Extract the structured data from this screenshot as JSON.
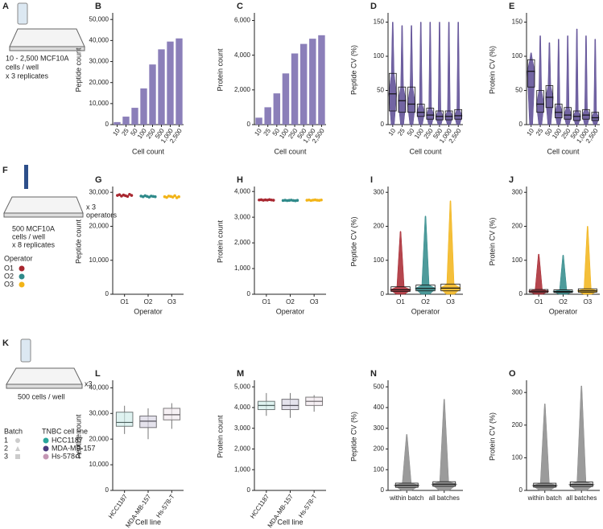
{
  "schematics": [
    {
      "panel": "A",
      "text": [
        "10 - 2,500 MCF10A",
        "cells / well",
        "x 3 replicates"
      ]
    },
    {
      "panel": "F",
      "text": [
        "500 MCF10A",
        "cells / well",
        "x 8 replicates"
      ],
      "side": [
        "x 3",
        "operators"
      ],
      "legend_title": "Operator",
      "legend": [
        {
          "name": "O1",
          "color": "#a8262f"
        },
        {
          "name": "O2",
          "color": "#2f8a8a"
        },
        {
          "name": "O3",
          "color": "#f2b418"
        }
      ]
    },
    {
      "panel": "K",
      "text": [
        "500 cells / well"
      ],
      "side": [
        "x3"
      ],
      "batch_title": "Batch",
      "batches": [
        "1",
        "2",
        "3"
      ],
      "legend_title": "TNBC cell line",
      "legend": [
        {
          "name": "HCC1187",
          "color": "#2aa59b"
        },
        {
          "name": "MDA-MB-157",
          "color": "#4b3b7d"
        },
        {
          "name": "Hs-578-T",
          "color": "#c497b4"
        }
      ]
    }
  ],
  "chart_data": [
    {
      "type": "bar",
      "panel": "B",
      "y_label": "Peptide count",
      "x_label": "Cell count",
      "color": "#8b7fb9",
      "categories": [
        "10",
        "25",
        "50",
        "100",
        "250",
        "500",
        "1,000",
        "2,500"
      ],
      "values": [
        1200,
        3800,
        8000,
        17200,
        28600,
        35800,
        39500,
        41000
      ],
      "ylim": [
        0,
        52000
      ],
      "yticks": [
        0,
        {
          "value": 10000,
          "label": "10,000"
        },
        {
          "value": 20000,
          "label": "20,000"
        },
        {
          "value": 30000,
          "label": "30,000"
        },
        {
          "value": 40000,
          "label": "40,000"
        },
        {
          "value": 50000,
          "label": "50,000"
        }
      ]
    },
    {
      "type": "bar",
      "panel": "C",
      "y_label": "Protein count",
      "x_label": "Cell count",
      "color": "#8b7fb9",
      "categories": [
        "10",
        "25",
        "50",
        "100",
        "250",
        "500",
        "1,000",
        "2,500"
      ],
      "values": [
        400,
        1000,
        1800,
        2950,
        4100,
        4650,
        4950,
        5150
      ],
      "ylim": [
        0,
        6300
      ],
      "yticks": [
        0,
        {
          "value": 2000,
          "label": "2,000"
        },
        {
          "value": 4000,
          "label": "4,000"
        },
        {
          "value": 6000,
          "label": "6,000"
        }
      ]
    },
    {
      "type": "violin",
      "panel": "D",
      "y_label": "Peptide CV (%)",
      "x_label": "Cell count",
      "color": "#5b4a93",
      "categories": [
        "10",
        "25",
        "50",
        "100",
        "250",
        "500",
        "1,000",
        "2,500"
      ],
      "q1": [
        20,
        18,
        18,
        12,
        8,
        7,
        7,
        8
      ],
      "median": [
        45,
        35,
        30,
        18,
        14,
        12,
        12,
        13
      ],
      "q3": [
        75,
        55,
        55,
        30,
        24,
        20,
        20,
        22
      ],
      "max": [
        150,
        145,
        145,
        150,
        150,
        150,
        150,
        150
      ],
      "ylim": [
        0,
        160
      ],
      "yticks": [
        0,
        50,
        100,
        150
      ]
    },
    {
      "type": "violin",
      "panel": "E",
      "y_label": "Protein CV (%)",
      "x_label": "Cell count",
      "color": "#5b4a93",
      "categories": [
        "10",
        "25",
        "50",
        "100",
        "250",
        "500",
        "1,000",
        "2,500"
      ],
      "q1": [
        55,
        18,
        25,
        10,
        8,
        6,
        8,
        6
      ],
      "median": [
        78,
        30,
        40,
        18,
        14,
        12,
        14,
        10
      ],
      "q3": [
        95,
        50,
        57,
        30,
        25,
        20,
        22,
        18
      ],
      "max": [
        105,
        130,
        120,
        125,
        130,
        140,
        130,
        125
      ],
      "ylim": [
        0,
        160
      ],
      "yticks": [
        0,
        50,
        100,
        150
      ]
    },
    {
      "type": "dot",
      "panel": "G",
      "y_label": "Peptide count",
      "x_label": "Operator",
      "categories": [
        "O1",
        "O2",
        "O3"
      ],
      "colors": [
        "#a8262f",
        "#2f8a8a",
        "#f2b418"
      ],
      "points": [
        [
          29100,
          29300,
          28900,
          29200,
          29000,
          28800,
          29400,
          29100
        ],
        [
          28900,
          28700,
          29000,
          28800,
          28600,
          28900,
          28800,
          28700
        ],
        [
          28700,
          28500,
          28900,
          28800,
          28600,
          29000,
          28400,
          28700
        ]
      ],
      "ylim": [
        0,
        31000
      ],
      "yticks": [
        0,
        {
          "value": 10000,
          "label": "10,000"
        },
        {
          "value": 20000,
          "label": "20,000"
        },
        {
          "value": 30000,
          "label": "30,000"
        }
      ]
    },
    {
      "type": "dot",
      "panel": "H",
      "y_label": "Protein count",
      "x_label": "Operator",
      "categories": [
        "O1",
        "O2",
        "O3"
      ],
      "colors": [
        "#a8262f",
        "#2f8a8a",
        "#f2b418"
      ],
      "points": [
        [
          3670,
          3680,
          3660,
          3675,
          3665,
          3685,
          3670,
          3660
        ],
        [
          3650,
          3660,
          3645,
          3655,
          3665,
          3650,
          3640,
          3655
        ],
        [
          3660,
          3670,
          3650,
          3665,
          3675,
          3660,
          3655,
          3670
        ]
      ],
      "ylim": [
        0,
        4100
      ],
      "yticks": [
        0,
        {
          "value": 1000,
          "label": "1,000"
        },
        {
          "value": 2000,
          "label": "2,000"
        },
        {
          "value": 3000,
          "label": "3,000"
        },
        {
          "value": 4000,
          "label": "4,000"
        }
      ]
    },
    {
      "type": "violin",
      "panel": "I",
      "y_label": "Peptide CV (%)",
      "x_label": "Operator",
      "categories": [
        "O1",
        "O2",
        "O3"
      ],
      "colors": [
        "#a8262f",
        "#2f8a8a",
        "#f2b418"
      ],
      "q1": [
        8,
        10,
        10
      ],
      "median": [
        13,
        17,
        18
      ],
      "q3": [
        22,
        27,
        30
      ],
      "max": [
        185,
        230,
        275
      ],
      "ylim": [
        0,
        310
      ],
      "yticks": [
        0,
        100,
        200,
        300
      ]
    },
    {
      "type": "violin",
      "panel": "J",
      "y_label": "Protein CV (%)",
      "x_label": "Operator",
      "categories": [
        "O1",
        "O2",
        "O3"
      ],
      "colors": [
        "#a8262f",
        "#2f8a8a",
        "#f2b418"
      ],
      "q1": [
        5,
        5,
        6
      ],
      "median": [
        9,
        8,
        10
      ],
      "q3": [
        14,
        13,
        16
      ],
      "max": [
        118,
        115,
        200
      ],
      "ylim": [
        0,
        310
      ],
      "yticks": [
        0,
        100,
        200,
        300
      ]
    },
    {
      "type": "box",
      "panel": "L",
      "y_label": "Peptide count",
      "x_label": "Cell line",
      "categories": [
        "HCC1187",
        "MDA-MB-157",
        "Hs-578-T"
      ],
      "colors": [
        "#2aa59b",
        "#4b3b7d",
        "#c497b4"
      ],
      "min": [
        22000,
        20000,
        24000
      ],
      "q1": [
        25000,
        24500,
        27500
      ],
      "median": [
        26500,
        27000,
        29500
      ],
      "q3": [
        30500,
        29000,
        32000
      ],
      "max": [
        33000,
        32000,
        34000
      ],
      "ylim": [
        0,
        42000
      ],
      "yticks": [
        0,
        {
          "value": 10000,
          "label": "10,000"
        },
        {
          "value": 20000,
          "label": "20,000"
        },
        {
          "value": 30000,
          "label": "30,000"
        },
        {
          "value": 40000,
          "label": "40,000"
        }
      ]
    },
    {
      "type": "box",
      "panel": "M",
      "y_label": "Protein count",
      "x_label": "Cell line",
      "categories": [
        "HCC1187",
        "MDA-MB-157",
        "Hs-578-T"
      ],
      "colors": [
        "#2aa59b",
        "#4b3b7d",
        "#c497b4"
      ],
      "min": [
        3600,
        3500,
        3800
      ],
      "q1": [
        3900,
        3900,
        4100
      ],
      "median": [
        4100,
        4100,
        4300
      ],
      "q3": [
        4300,
        4400,
        4500
      ],
      "max": [
        4700,
        4700,
        4600
      ],
      "ylim": [
        0,
        5200
      ],
      "yticks": [
        0,
        {
          "value": 1000,
          "label": "1,000"
        },
        {
          "value": 2000,
          "label": "2,000"
        },
        {
          "value": 3000,
          "label": "3,000"
        },
        {
          "value": 4000,
          "label": "4,000"
        },
        {
          "value": 5000,
          "label": "5,000"
        }
      ]
    },
    {
      "type": "violin",
      "panel": "N",
      "y_label": "Peptide CV (%)",
      "color": "#8a8a8a",
      "categories": [
        "within batch",
        "all batches"
      ],
      "q1": [
        15,
        20
      ],
      "median": [
        25,
        30
      ],
      "q3": [
        35,
        42
      ],
      "max": [
        270,
        440
      ],
      "ylim": [
        0,
        520
      ],
      "yticks": [
        0,
        100,
        200,
        300,
        400,
        500
      ]
    },
    {
      "type": "violin",
      "panel": "O",
      "y_label": "Protein CV (%)",
      "color": "#8a8a8a",
      "categories": [
        "within batch",
        "all batches"
      ],
      "q1": [
        10,
        12
      ],
      "median": [
        15,
        18
      ],
      "q3": [
        22,
        26
      ],
      "max": [
        265,
        320
      ],
      "ylim": [
        0,
        330
      ],
      "yticks": [
        0,
        100,
        200,
        300
      ]
    }
  ]
}
